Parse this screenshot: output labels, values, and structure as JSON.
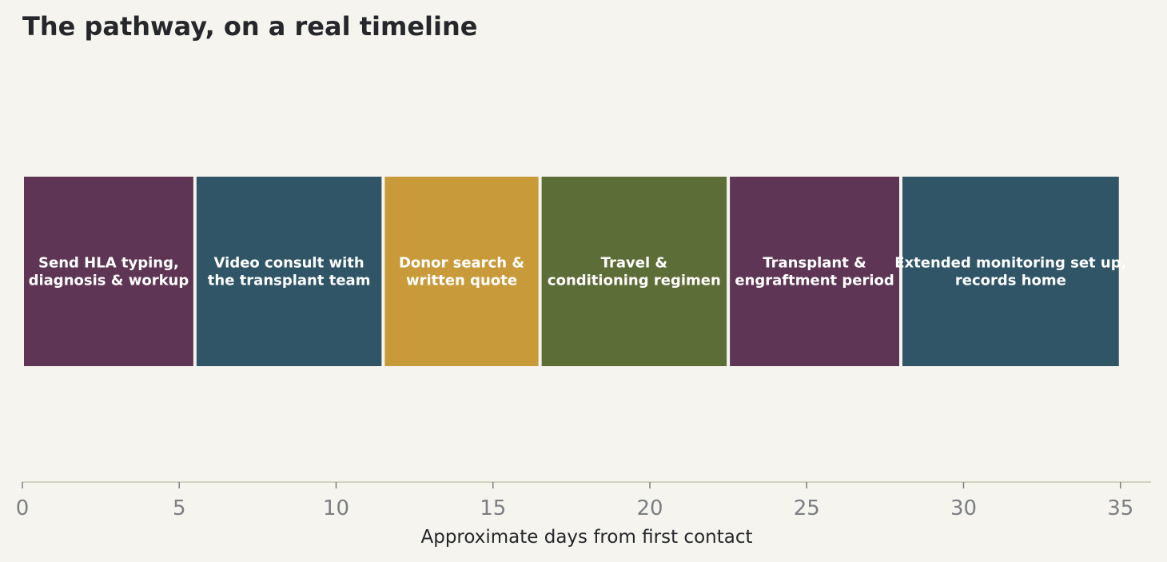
{
  "chart_data": {
    "type": "bar",
    "orientation": "horizontal-timeline",
    "title": "The pathway, on a real timeline",
    "xlabel": "Approximate days from first contact",
    "ylabel": "",
    "xlim": [
      0,
      36
    ],
    "x_ticks": [
      0,
      5,
      10,
      15,
      20,
      25,
      30,
      35
    ],
    "grid": false,
    "legend": "none",
    "segments": [
      {
        "label_lines": [
          "Send HLA typing,",
          "diagnosis & workup"
        ],
        "start": 0,
        "end": 5.5,
        "color": "#5e3554"
      },
      {
        "label_lines": [
          "Video consult with",
          "the transplant team"
        ],
        "start": 5.5,
        "end": 11.5,
        "color": "#2f5567"
      },
      {
        "label_lines": [
          "Donor search &",
          "written quote"
        ],
        "start": 11.5,
        "end": 16.5,
        "color": "#c99a3a"
      },
      {
        "label_lines": [
          "Travel &",
          "conditioning regimen"
        ],
        "start": 16.5,
        "end": 22.5,
        "color": "#5d6d37"
      },
      {
        "label_lines": [
          "Transplant &",
          "engraftment period"
        ],
        "start": 22.5,
        "end": 28,
        "color": "#5e3554"
      },
      {
        "label_lines": [
          "Extended monitoring set up,",
          "records home"
        ],
        "start": 28,
        "end": 35,
        "color": "#2f5567"
      }
    ]
  }
}
